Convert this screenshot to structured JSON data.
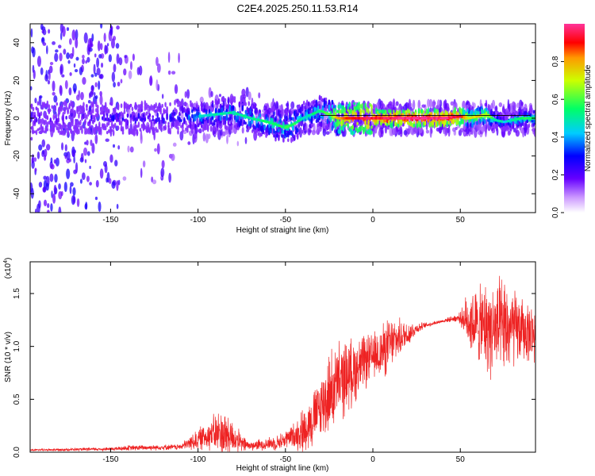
{
  "figure": {
    "title": "C2E4.2025.250.11.53.R14"
  },
  "chart_data": [
    {
      "type": "heatmap",
      "name": "spectrogram",
      "xlabel": "Height of straight line (km)",
      "ylabel": "Frequency (Hz)",
      "xlim": [
        -196,
        93
      ],
      "ylim": [
        -50,
        50
      ],
      "xticks": [
        -150,
        -100,
        -50,
        0,
        50
      ],
      "yticks": [
        -40,
        -20,
        0,
        20,
        40
      ],
      "colorbar": {
        "label": "Normalized spectral amplitude",
        "range": [
          0,
          1
        ],
        "ticks": [
          "0.0",
          "0.2",
          "0.4",
          "0.6",
          "0.8"
        ],
        "tick_values": [
          0,
          0.2,
          0.4,
          0.6,
          0.8
        ]
      },
      "ridge": {
        "description_values": "approximate peak frequency track (Hz) vs height (km)",
        "x": [
          -196,
          -150,
          -120,
          -100,
          -80,
          -70,
          -60,
          -50,
          -45,
          -40,
          -35,
          -30,
          -25,
          -20,
          -15,
          -10,
          0,
          20,
          40,
          50,
          55,
          60,
          65,
          70,
          75,
          80,
          85,
          93
        ],
        "y": [
          0,
          0,
          0,
          1,
          3,
          0,
          -2,
          -5,
          -3,
          0,
          2,
          4,
          2,
          0,
          0,
          0,
          0,
          0,
          0,
          1,
          0,
          1,
          2,
          -1,
          -2,
          -1,
          0,
          0
        ],
        "peak_amplitude": [
          0.25,
          0.3,
          0.35,
          0.45,
          0.5,
          0.5,
          0.55,
          0.55,
          0.55,
          0.5,
          0.5,
          0.55,
          0.6,
          0.8,
          0.85,
          0.9,
          0.95,
          1.0,
          1.0,
          0.95,
          0.7,
          0.75,
          0.7,
          0.5,
          0.45,
          0.5,
          0.55,
          0.55
        ]
      }
    },
    {
      "type": "line",
      "name": "snr",
      "xlabel": "Height of straight line (km)",
      "ylabel": "SNR (10 * v/v)",
      "scale_label": "(x10",
      "scale_exp": "4",
      "scale_close": ")",
      "xlim": [
        -196,
        93
      ],
      "ylim": [
        0,
        1.8
      ],
      "xticks": [
        -150,
        -100,
        -50,
        0,
        50
      ],
      "yticks": [
        0,
        0.5,
        1.0,
        1.5
      ],
      "ytick_labels": [
        "0.0",
        "0.5",
        "1.0",
        "1.5"
      ],
      "color": "#ee2222",
      "envelope": {
        "x": [
          -196,
          -150,
          -140,
          -110,
          -100,
          -95,
          -90,
          -85,
          -80,
          -75,
          -70,
          -65,
          -60,
          -55,
          -50,
          -45,
          -40,
          -35,
          -30,
          -25,
          -20,
          -15,
          -10,
          -5,
          0,
          5,
          10,
          15,
          20,
          25,
          30,
          35,
          40,
          45,
          50,
          55,
          60,
          65,
          70,
          75,
          80,
          85,
          93
        ],
        "base": [
          0.02,
          0.03,
          0.04,
          0.05,
          0.12,
          0.16,
          0.18,
          0.17,
          0.14,
          0.08,
          0.06,
          0.07,
          0.08,
          0.09,
          0.12,
          0.16,
          0.2,
          0.3,
          0.42,
          0.55,
          0.65,
          0.72,
          0.78,
          0.85,
          0.9,
          0.95,
          1.02,
          1.08,
          1.12,
          1.17,
          1.2,
          1.22,
          1.24,
          1.26,
          1.27,
          1.25,
          1.2,
          1.18,
          1.15,
          1.16,
          1.17,
          1.15,
          1.12
        ],
        "spread": [
          0.01,
          0.02,
          0.03,
          0.03,
          0.12,
          0.15,
          0.22,
          0.3,
          0.18,
          0.1,
          0.05,
          0.06,
          0.07,
          0.08,
          0.1,
          0.14,
          0.25,
          0.3,
          0.35,
          0.45,
          0.45,
          0.4,
          0.35,
          0.3,
          0.25,
          0.3,
          0.3,
          0.2,
          0.15,
          0.06,
          0.03,
          0.02,
          0.02,
          0.03,
          0.06,
          0.35,
          0.4,
          0.5,
          0.55,
          0.55,
          0.45,
          0.35,
          0.3
        ]
      }
    }
  ]
}
